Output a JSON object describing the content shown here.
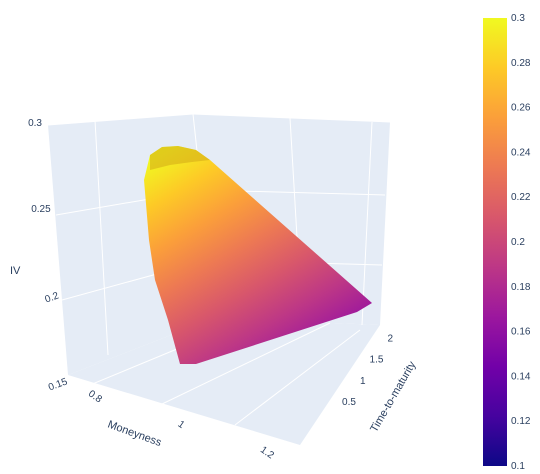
{
  "chart_data": {
    "type": "surface",
    "axes": {
      "x": {
        "label": "Moneyness",
        "ticks": [
          "0.8",
          "1",
          "1.2"
        ],
        "range": [
          0.75,
          1.25
        ]
      },
      "y": {
        "label": "Time-to-maturity",
        "ticks": [
          "0.5",
          "1",
          "1.5",
          "2"
        ],
        "range": [
          0.1,
          2.1
        ]
      },
      "z": {
        "label": "IV",
        "ticks": [
          "0.15",
          "0.2",
          "0.25",
          "0.3"
        ],
        "range": [
          0.15,
          0.3
        ]
      }
    },
    "colorbar": {
      "range": [
        0.1,
        0.3
      ],
      "ticks": [
        "0.1",
        "0.12",
        "0.14",
        "0.16",
        "0.18",
        "0.2",
        "0.22",
        "0.24",
        "0.26",
        "0.28",
        "0.3"
      ]
    },
    "colorscale": [
      "#0d0887",
      "#46039f",
      "#7201a8",
      "#9c179e",
      "#bd3786",
      "#d8576b",
      "#ed7953",
      "#fb9f3a",
      "#fdca26",
      "#f0f921"
    ],
    "surface_corners": [
      {
        "moneyness": 0.8,
        "ttm": 2.0,
        "iv": 0.275
      },
      {
        "moneyness": 1.2,
        "ttm": 2.0,
        "iv": 0.175
      },
      {
        "moneyness": 1.2,
        "ttm": 0.5,
        "iv": 0.165
      },
      {
        "moneyness": 0.8,
        "ttm": 0.5,
        "iv": 0.17
      }
    ]
  }
}
